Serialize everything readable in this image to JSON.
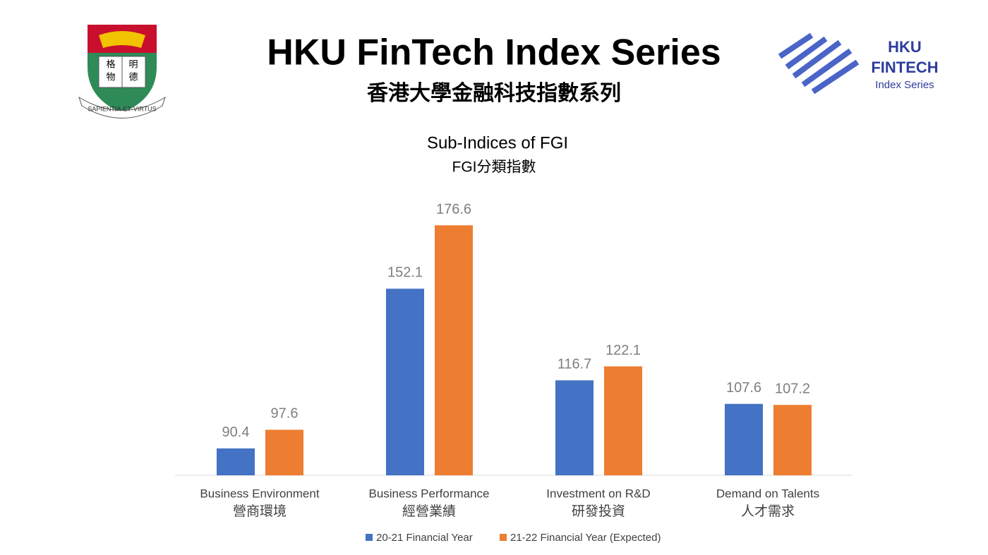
{
  "header": {
    "title": "HKU FinTech Index Series",
    "subtitle": "香港大學金融科技指數系列",
    "crest_motto": "SAPIENTIA·ET·VIRTUS",
    "crest_chars": [
      "格",
      "明",
      "物",
      "德"
    ],
    "logo_line1": "HKU",
    "logo_line2": "FINTECH",
    "logo_line3": "Index Series"
  },
  "chart_data": {
    "type": "bar",
    "title": "Sub-Indices of FGI",
    "subtitle": "FGI分類指數",
    "categories": [
      "Business Environment",
      "Business Performance",
      "Investment on R&D",
      "Demand on Talents"
    ],
    "categories_zh": [
      "營商環境",
      "經營業績",
      "研發投資",
      "人才需求"
    ],
    "series": [
      {
        "name": "20-21 Financial Year",
        "color": "#4472c4",
        "values": [
          90.4,
          152.1,
          116.7,
          107.6
        ]
      },
      {
        "name": "21-22 Financial Year (Expected)",
        "color": "#ed7d31",
        "values": [
          97.6,
          176.6,
          122.1,
          107.2
        ]
      }
    ],
    "ylim": [
      80,
      180
    ],
    "grid": false
  }
}
